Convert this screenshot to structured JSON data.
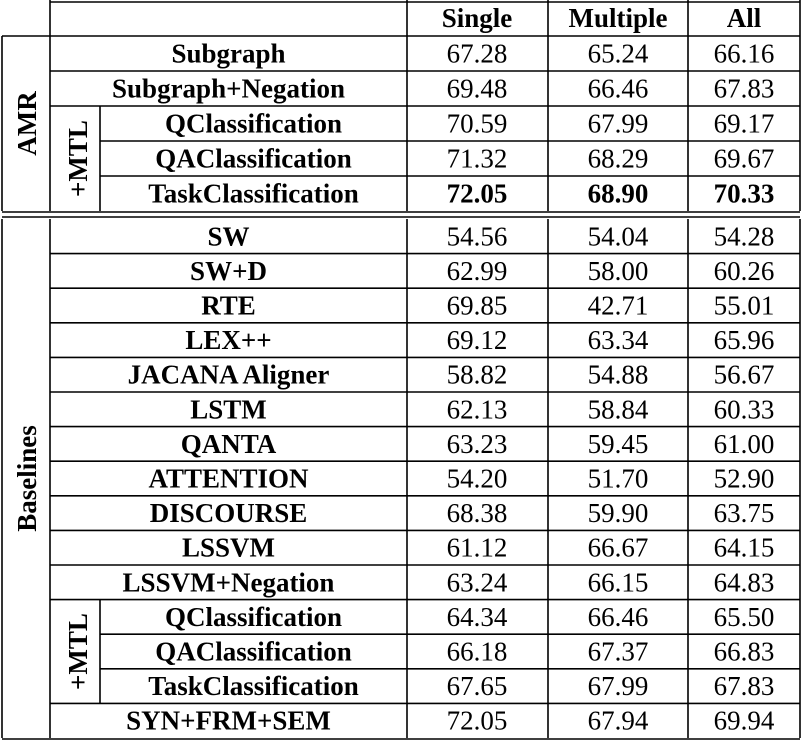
{
  "header": [
    "Single",
    "Multiple",
    "All"
  ],
  "groups": [
    {
      "label": "AMR",
      "sections": [
        {
          "rows": [
            {
              "name": "Subgraph",
              "values": [
                "67.28",
                "65.24",
                "66.16"
              ]
            },
            {
              "name": "Subgraph+Negation",
              "values": [
                "69.48",
                "66.46",
                "67.83"
              ]
            }
          ]
        },
        {
          "label": "+MTL",
          "rows": [
            {
              "name": "QClassification",
              "values": [
                "70.59",
                "67.99",
                "69.17"
              ]
            },
            {
              "name": "QAClassification",
              "values": [
                "71.32",
                "68.29",
                "69.67"
              ]
            },
            {
              "name": "TaskClassification",
              "values": [
                "72.05",
                "68.90",
                "70.33"
              ],
              "bold": true
            }
          ]
        }
      ]
    },
    {
      "label": "Baselines",
      "sections": [
        {
          "rows": [
            {
              "name": "SW",
              "values": [
                "54.56",
                "54.04",
                "54.28"
              ]
            },
            {
              "name": "SW+D",
              "values": [
                "62.99",
                "58.00",
                "60.26"
              ]
            },
            {
              "name": "RTE",
              "values": [
                "69.85",
                "42.71",
                "55.01"
              ]
            },
            {
              "name": "LEX++",
              "values": [
                "69.12",
                "63.34",
                "65.96"
              ]
            },
            {
              "name": "JACANA Aligner",
              "values": [
                "58.82",
                "54.88",
                "56.67"
              ]
            },
            {
              "name": "LSTM",
              "values": [
                "62.13",
                "58.84",
                "60.33"
              ]
            },
            {
              "name": "QANTA",
              "values": [
                "63.23",
                "59.45",
                "61.00"
              ]
            },
            {
              "name": "ATTENTION",
              "values": [
                "54.20",
                "51.70",
                "52.90"
              ]
            },
            {
              "name": "DISCOURSE",
              "values": [
                "68.38",
                "59.90",
                "63.75"
              ]
            },
            {
              "name": "LSSVM",
              "values": [
                "61.12",
                "66.67",
                "64.15"
              ]
            },
            {
              "name": "LSSVM+Negation",
              "values": [
                "63.24",
                "66.15",
                "64.83"
              ]
            }
          ]
        },
        {
          "label": "+MTL",
          "rows": [
            {
              "name": "QClassification",
              "values": [
                "64.34",
                "66.46",
                "65.50"
              ]
            },
            {
              "name": "QAClassification",
              "values": [
                "66.18",
                "67.37",
                "66.83"
              ]
            },
            {
              "name": "TaskClassification",
              "values": [
                "67.65",
                "67.99",
                "67.83"
              ]
            }
          ]
        },
        {
          "rows": [
            {
              "name": "SYN+FRM+SEM",
              "values": [
                "72.05",
                "67.94",
                "69.94"
              ]
            }
          ]
        }
      ]
    }
  ]
}
